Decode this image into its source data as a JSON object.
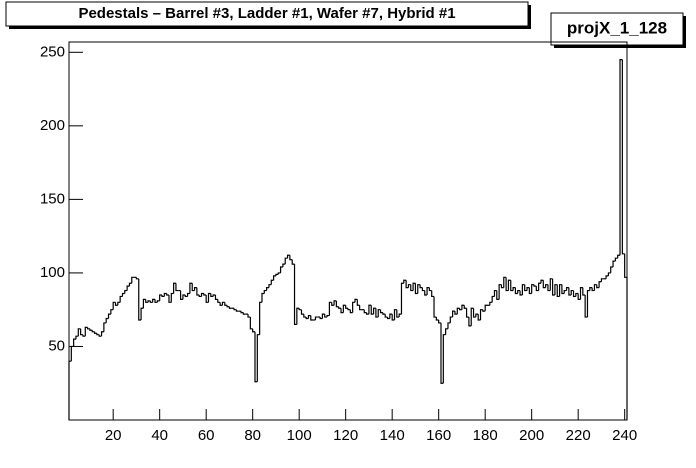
{
  "chart_data": {
    "type": "histogram",
    "title": "Pedestals – Barrel #3, Ladder #1, Wafer #7, Hybrid #1",
    "stats_name": "projX_1_128",
    "color": "#000000",
    "xlim": [
      1,
      241
    ],
    "ylim": [
      0,
      257
    ],
    "xticks": [
      20,
      40,
      60,
      80,
      100,
      120,
      140,
      160,
      180,
      200,
      220,
      240
    ],
    "yticks": [
      50,
      100,
      150,
      200,
      250
    ],
    "bins": [
      1,
      2,
      3,
      4,
      5,
      6,
      7,
      8,
      9,
      10,
      11,
      12,
      13,
      14,
      15,
      16,
      17,
      18,
      19,
      20,
      21,
      22,
      23,
      24,
      25,
      26,
      27,
      28,
      29,
      30,
      31,
      32,
      33,
      34,
      35,
      36,
      37,
      38,
      39,
      40,
      41,
      42,
      43,
      44,
      45,
      46,
      47,
      48,
      49,
      50,
      51,
      52,
      53,
      54,
      55,
      56,
      57,
      58,
      59,
      60,
      61,
      62,
      63,
      64,
      65,
      66,
      67,
      68,
      69,
      70,
      71,
      72,
      73,
      74,
      75,
      76,
      77,
      78,
      79,
      80,
      81,
      82,
      83,
      84,
      85,
      86,
      87,
      88,
      89,
      90,
      91,
      92,
      93,
      94,
      95,
      96,
      97,
      98,
      99,
      100,
      101,
      102,
      103,
      104,
      105,
      106,
      107,
      108,
      109,
      110,
      111,
      112,
      113,
      114,
      115,
      116,
      117,
      118,
      119,
      120,
      121,
      122,
      123,
      124,
      125,
      126,
      127,
      128,
      129,
      130,
      131,
      132,
      133,
      134,
      135,
      136,
      137,
      138,
      139,
      140,
      141,
      142,
      143,
      144,
      145,
      146,
      147,
      148,
      149,
      150,
      151,
      152,
      153,
      154,
      155,
      156,
      157,
      158,
      159,
      160,
      161,
      162,
      163,
      164,
      165,
      166,
      167,
      168,
      169,
      170,
      171,
      172,
      173,
      174,
      175,
      176,
      177,
      178,
      179,
      180,
      181,
      182,
      183,
      184,
      185,
      186,
      187,
      188,
      189,
      190,
      191,
      192,
      193,
      194,
      195,
      196,
      197,
      198,
      199,
      200,
      201,
      202,
      203,
      204,
      205,
      206,
      207,
      208,
      209,
      210,
      211,
      212,
      213,
      214,
      215,
      216,
      217,
      218,
      219,
      220,
      221,
      222,
      223,
      224,
      225,
      226,
      227,
      228,
      229,
      230,
      231,
      232,
      233,
      234,
      235,
      236,
      237,
      238,
      239,
      240,
      241
    ],
    "values": [
      40,
      50,
      55,
      57,
      62,
      58,
      57,
      63,
      62,
      61,
      60,
      59,
      58,
      57,
      60,
      66,
      69,
      72,
      75,
      80,
      78,
      80,
      84,
      86,
      88,
      91,
      93,
      97,
      97,
      96,
      68,
      76,
      82,
      80,
      81,
      80,
      82,
      80,
      81,
      85,
      84,
      86,
      85,
      80,
      86,
      93,
      88,
      88,
      82,
      85,
      84,
      86,
      93,
      88,
      90,
      85,
      84,
      86,
      85,
      80,
      86,
      84,
      85,
      82,
      80,
      78,
      80,
      78,
      77,
      76,
      76,
      75,
      74,
      74,
      73,
      72,
      72,
      70,
      62,
      60,
      26,
      58,
      80,
      86,
      88,
      90,
      92,
      95,
      98,
      99,
      100,
      104,
      106,
      110,
      112,
      109,
      106,
      65,
      76,
      75,
      72,
      70,
      69,
      71,
      68,
      68,
      70,
      70,
      69,
      72,
      70,
      71,
      80,
      78,
      81,
      77,
      76,
      73,
      78,
      76,
      75,
      73,
      80,
      82,
      78,
      75,
      75,
      73,
      72,
      78,
      72,
      76,
      70,
      75,
      73,
      72,
      70,
      69,
      72,
      68,
      75,
      70,
      72,
      93,
      95,
      90,
      92,
      88,
      93,
      86,
      92,
      90,
      88,
      85,
      90,
      88,
      84,
      70,
      68,
      66,
      25,
      58,
      62,
      66,
      70,
      74,
      72,
      76,
      75,
      78,
      76,
      70,
      64,
      76,
      70,
      72,
      68,
      75,
      74,
      78,
      78,
      80,
      84,
      88,
      82,
      92,
      90,
      97,
      88,
      95,
      88,
      90,
      86,
      88,
      85,
      92,
      88,
      90,
      86,
      92,
      91,
      88,
      93,
      95,
      90,
      92,
      88,
      96,
      85,
      92,
      84,
      92,
      86,
      88,
      90,
      85,
      88,
      84,
      86,
      82,
      90,
      85,
      70,
      88,
      90,
      88,
      92,
      90,
      94,
      96,
      96,
      98,
      100,
      104,
      108,
      110,
      112,
      245,
      113,
      97
    ]
  }
}
